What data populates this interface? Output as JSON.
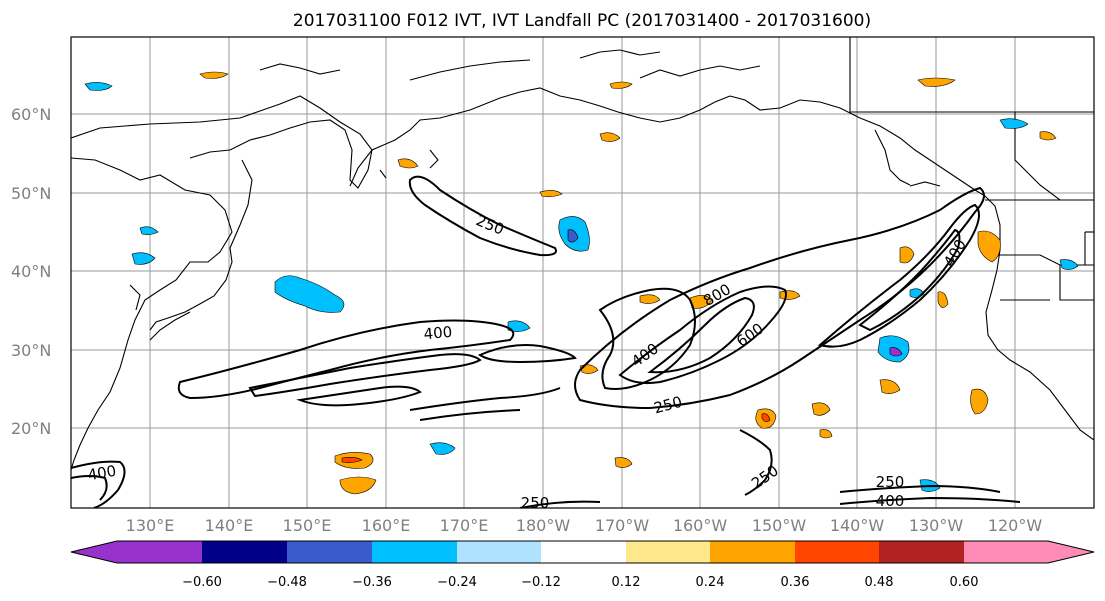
{
  "title": "2017031100 F012 IVT, IVT Landfall PC (2017031400 - 2017031600)",
  "map": {
    "lat_labels": [
      "60°N",
      "50°N",
      "40°N",
      "30°N",
      "20°N"
    ],
    "lon_labels": [
      "130°E",
      "140°E",
      "150°E",
      "160°E",
      "170°E",
      "180°W",
      "170°W",
      "160°W",
      "150°W",
      "140°W",
      "130°W",
      "120°W"
    ],
    "contour_labels": [
      "250",
      "400",
      "800",
      "600",
      "400",
      "250",
      "250",
      "250",
      "400",
      "250",
      "400",
      "400"
    ]
  },
  "colorbar": {
    "colors": [
      "#9932cc",
      "#00008b",
      "#3a5bcc",
      "#00bfff",
      "#b0e2ff",
      "#ffffff",
      "#ffe88a",
      "#ffa500",
      "#ff4500",
      "#b22222",
      "#ff8cb4"
    ],
    "ticks": [
      "−0.60",
      "−0.48",
      "−0.36",
      "−0.24",
      "−0.12",
      "0.12",
      "0.24",
      "0.36",
      "0.48",
      "0.60"
    ]
  }
}
